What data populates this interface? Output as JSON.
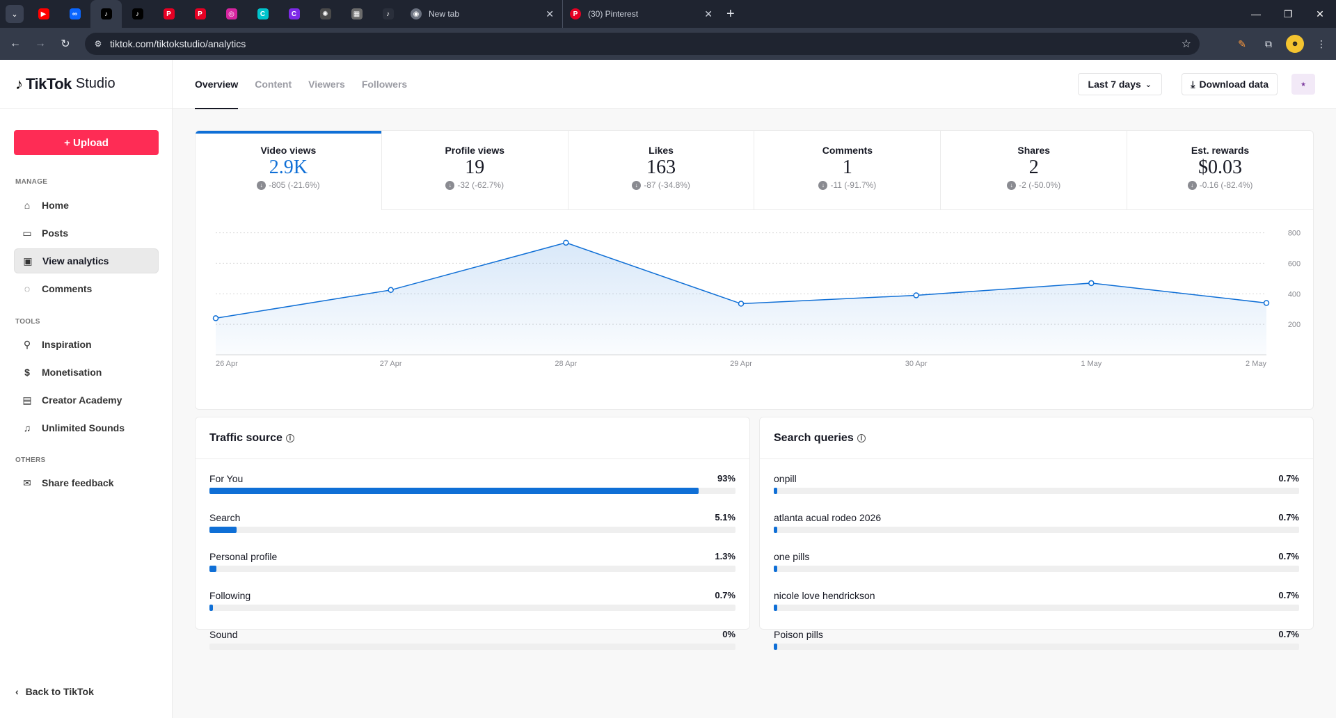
{
  "browser": {
    "tab_list_icon": "chevron-down",
    "pinned_tabs": [
      {
        "name": "youtube",
        "color": "#ff0000",
        "glyph": "▶"
      },
      {
        "name": "meta",
        "color": "#0a66ff",
        "glyph": "∞"
      },
      {
        "name": "tiktok",
        "color": "#000000",
        "glyph": "♪",
        "active": true
      },
      {
        "name": "tiktok",
        "color": "#000000",
        "glyph": "♪"
      },
      {
        "name": "pinterest",
        "color": "#e60023",
        "glyph": "P"
      },
      {
        "name": "pinterest",
        "color": "#e60023",
        "glyph": "P"
      },
      {
        "name": "instagram",
        "color": "#d6249f",
        "glyph": "◎"
      },
      {
        "name": "canva",
        "color": "#00c4cc",
        "glyph": "C"
      },
      {
        "name": "canva",
        "color": "#7d2ae8",
        "glyph": "C"
      },
      {
        "name": "openai",
        "color": "#4a4a4a",
        "glyph": "✺"
      },
      {
        "name": "app",
        "color": "#6b6b6b",
        "glyph": "▦"
      },
      {
        "name": "tiktok",
        "color": "#2a2f3b",
        "glyph": "♪"
      }
    ],
    "tabs": [
      {
        "title": "New tab",
        "icon": "chrome-icon",
        "color": "#6b7280"
      },
      {
        "title": "(30) Pinterest",
        "icon": "pinterest-icon",
        "color": "#e60023"
      }
    ],
    "url": "tiktok.com/tiktokstudio/analytics"
  },
  "brand": {
    "name": "TikTok",
    "suffix": "Studio"
  },
  "sidebar": {
    "upload_label": "+ Upload",
    "manage_label": "MANAGE",
    "tools_label": "TOOLS",
    "others_label": "OTHERS",
    "manage_items": [
      {
        "label": "Home",
        "icon": "home-icon"
      },
      {
        "label": "Posts",
        "icon": "posts-icon"
      },
      {
        "label": "View analytics",
        "icon": "analytics-icon",
        "active": true
      },
      {
        "label": "Comments",
        "icon": "comments-icon"
      }
    ],
    "tool_items": [
      {
        "label": "Inspiration",
        "icon": "lightbulb-icon"
      },
      {
        "label": "Monetisation",
        "icon": "dollar-icon"
      },
      {
        "label": "Creator Academy",
        "icon": "academy-icon"
      },
      {
        "label": "Unlimited Sounds",
        "icon": "music-icon"
      }
    ],
    "other_items": [
      {
        "label": "Share feedback",
        "icon": "feedback-icon"
      }
    ],
    "back_label": "Back to TikTok"
  },
  "topnav": {
    "tabs": [
      "Overview",
      "Content",
      "Viewers",
      "Followers"
    ],
    "active_tab": "Overview",
    "range_label": "Last 7 days",
    "download_label": "Download data"
  },
  "metrics": [
    {
      "label": "Video views",
      "value": "2.9K",
      "change": "-805 (-21.6%)",
      "active": true
    },
    {
      "label": "Profile views",
      "value": "19",
      "change": "-32 (-62.7%)"
    },
    {
      "label": "Likes",
      "value": "163",
      "change": "-87 (-34.8%)"
    },
    {
      "label": "Comments",
      "value": "1",
      "change": "-11 (-91.7%)"
    },
    {
      "label": "Shares",
      "value": "2",
      "change": "-2 (-50.0%)"
    },
    {
      "label": "Est. rewards",
      "value": "$0.03",
      "change": "-0.16 (-82.4%)"
    }
  ],
  "chart_data": {
    "type": "area",
    "title": "",
    "xlabel": "",
    "ylabel": "",
    "categories": [
      "26 Apr",
      "27 Apr",
      "28 Apr",
      "29 Apr",
      "30 Apr",
      "1 May",
      "2 May"
    ],
    "series": [
      {
        "values": [
          240,
          425,
          735,
          335,
          390,
          470,
          340
        ]
      }
    ],
    "yticks": [
      200,
      400,
      600,
      800
    ],
    "ylim": [
      0,
      830
    ],
    "y_axis_side": "right",
    "grid": true,
    "color": "#0f6fd6"
  },
  "traffic": {
    "title": "Traffic source",
    "rows": [
      {
        "label": "For You",
        "pct": "93%",
        "value": 93
      },
      {
        "label": "Search",
        "pct": "5.1%",
        "value": 5.1
      },
      {
        "label": "Personal profile",
        "pct": "1.3%",
        "value": 1.3
      },
      {
        "label": "Following",
        "pct": "0.7%",
        "value": 0.7
      },
      {
        "label": "Sound",
        "pct": "0%",
        "value": 0
      }
    ]
  },
  "search": {
    "title": "Search queries",
    "rows": [
      {
        "label": "onpill",
        "pct": "0.7%",
        "value": 0.7
      },
      {
        "label": "atlanta acual rodeo 2026",
        "pct": "0.7%",
        "value": 0.7
      },
      {
        "label": "one pills",
        "pct": "0.7%",
        "value": 0.7
      },
      {
        "label": "nicole love hendrickson",
        "pct": "0.7%",
        "value": 0.7
      },
      {
        "label": "Poison pills",
        "pct": "0.7%",
        "value": 0.7
      }
    ]
  }
}
